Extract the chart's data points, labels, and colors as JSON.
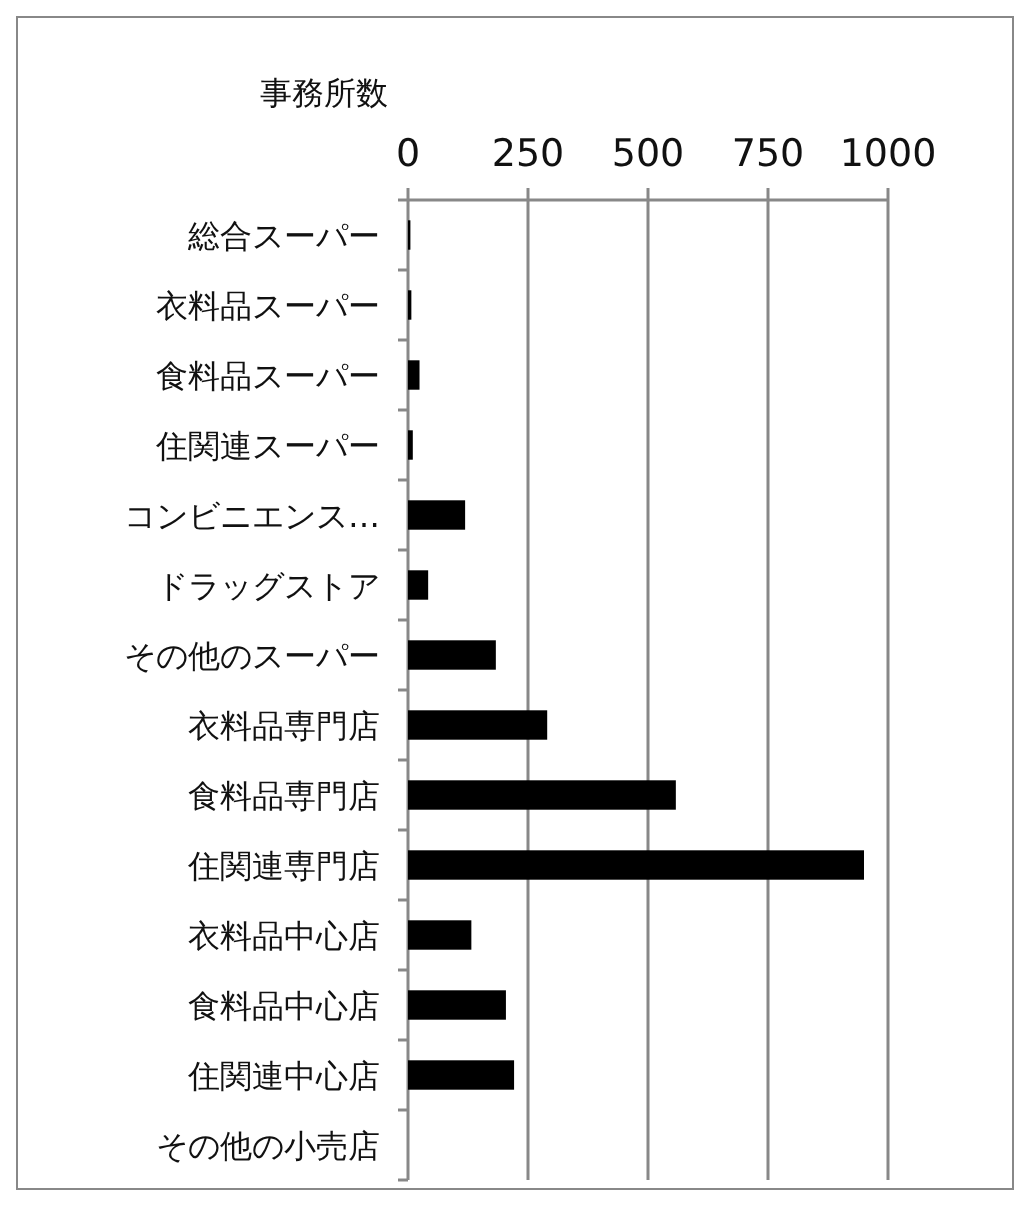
{
  "chart_data": {
    "type": "bar",
    "orientation": "horizontal",
    "xlabel": "事務所数",
    "categories": [
      "総合スーパー",
      "衣料品スーパー",
      "食料品スーパー",
      "住関連スーパー",
      "コンビニエンス…",
      "ドラッグストア",
      "その他のスーパー",
      "衣料品専門店",
      "食料品専門店",
      "住関連専門店",
      "衣料品中心店",
      "食料品中心店",
      "住関連中心店",
      "その他の小売店"
    ],
    "values": [
      5,
      7,
      24,
      10,
      119,
      42,
      183,
      290,
      558,
      950,
      132,
      204,
      221,
      0
    ],
    "color": "#000000",
    "xlim": [
      0,
      1000
    ],
    "xticks": [
      0,
      250,
      500,
      750,
      1000
    ],
    "grid": "x"
  }
}
